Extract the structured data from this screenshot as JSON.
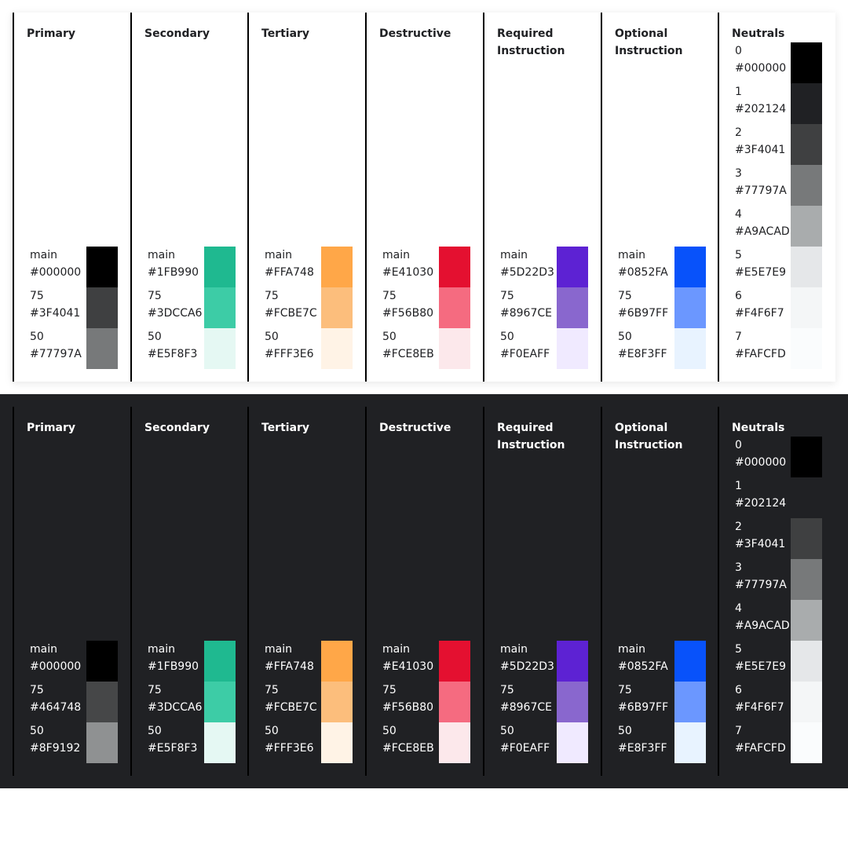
{
  "light": {
    "columns": [
      {
        "title": "Primary",
        "shades": [
          {
            "name": "main",
            "hex": "#000000",
            "color": "#000000"
          },
          {
            "name": "75",
            "hex": "#3F4041",
            "color": "#3F4041"
          },
          {
            "name": "50",
            "hex": "#77797A",
            "color": "#77797A"
          }
        ]
      },
      {
        "title": "Secondary",
        "shades": [
          {
            "name": "main",
            "hex": "#1FB990",
            "color": "#1FB990"
          },
          {
            "name": "75",
            "hex": "#3DCCA6",
            "color": "#3DCCA6"
          },
          {
            "name": "50",
            "hex": "#E5F8F3",
            "color": "#E5F8F3"
          }
        ]
      },
      {
        "title": "Tertiary",
        "shades": [
          {
            "name": "main",
            "hex": "#FFA748",
            "color": "#FFA748"
          },
          {
            "name": "75",
            "hex": "#FCBE7C",
            "color": "#FCBE7C"
          },
          {
            "name": "50",
            "hex": "#FFF3E6",
            "color": "#FFF3E6"
          }
        ]
      },
      {
        "title": "Destructive",
        "shades": [
          {
            "name": "main",
            "hex": "#E41030",
            "color": "#E41030"
          },
          {
            "name": "75",
            "hex": "#F56B80",
            "color": "#F56B80"
          },
          {
            "name": "50",
            "hex": "#FCE8EB",
            "color": "#FCE8EB"
          }
        ]
      },
      {
        "title": "Required Instruction",
        "shades": [
          {
            "name": "main",
            "hex": "#5D22D3",
            "color": "#5D22D3"
          },
          {
            "name": "75",
            "hex": "#8967CE",
            "color": "#8967CE"
          },
          {
            "name": "50",
            "hex": "#F0EAFF",
            "color": "#F0EAFF"
          }
        ]
      },
      {
        "title": "Optional Instruction",
        "shades": [
          {
            "name": "main",
            "hex": "#0852FA",
            "color": "#0852FA"
          },
          {
            "name": "75",
            "hex": "#6B97FF",
            "color": "#6B97FF"
          },
          {
            "name": "50",
            "hex": "#E8F3FF",
            "color": "#E8F3FF"
          }
        ]
      }
    ],
    "neutrals": {
      "title": "Neutrals",
      "shades": [
        {
          "name": "0",
          "hex": "#000000",
          "color": "#000000"
        },
        {
          "name": "1",
          "hex": "#202124",
          "color": "#202124"
        },
        {
          "name": "2",
          "hex": "#3F4041",
          "color": "#3F4041"
        },
        {
          "name": "3",
          "hex": "#77797A",
          "color": "#77797A"
        },
        {
          "name": "4",
          "hex": "#A9ACAD",
          "color": "#A9ACAD"
        },
        {
          "name": "5",
          "hex": "#E5E7E9",
          "color": "#E5E7E9"
        },
        {
          "name": "6",
          "hex": "#F4F6F7",
          "color": "#F4F6F7"
        },
        {
          "name": "7",
          "hex": "#FAFCFD",
          "color": "#FAFCFD"
        }
      ]
    }
  },
  "dark": {
    "columns": [
      {
        "title": "Primary",
        "shades": [
          {
            "name": "main",
            "hex": "#000000",
            "color": "#000000"
          },
          {
            "name": "75",
            "hex": "#464748",
            "color": "#464748"
          },
          {
            "name": "50",
            "hex": "#8F9192",
            "color": "#8F9192"
          }
        ]
      },
      {
        "title": "Secondary",
        "shades": [
          {
            "name": "main",
            "hex": "#1FB990",
            "color": "#1FB990"
          },
          {
            "name": "75",
            "hex": "#3DCCA6",
            "color": "#3DCCA6"
          },
          {
            "name": "50",
            "hex": "#E5F8F3",
            "color": "#E5F8F3"
          }
        ]
      },
      {
        "title": "Tertiary",
        "shades": [
          {
            "name": "main",
            "hex": "#FFA748",
            "color": "#FFA748"
          },
          {
            "name": "75",
            "hex": "#FCBE7C",
            "color": "#FCBE7C"
          },
          {
            "name": "50",
            "hex": "#FFF3E6",
            "color": "#FFF3E6"
          }
        ]
      },
      {
        "title": "Destructive",
        "shades": [
          {
            "name": "main",
            "hex": "#E41030",
            "color": "#E41030"
          },
          {
            "name": "75",
            "hex": "#F56B80",
            "color": "#F56B80"
          },
          {
            "name": "50",
            "hex": "#FCE8EB",
            "color": "#FCE8EB"
          }
        ]
      },
      {
        "title": "Required Instruction",
        "shades": [
          {
            "name": "main",
            "hex": "#5D22D3",
            "color": "#5D22D3"
          },
          {
            "name": "75",
            "hex": "#8967CE",
            "color": "#8967CE"
          },
          {
            "name": "50",
            "hex": "#F0EAFF",
            "color": "#F0EAFF"
          }
        ]
      },
      {
        "title": "Optional Instruction",
        "shades": [
          {
            "name": "main",
            "hex": "#0852FA",
            "color": "#0852FA"
          },
          {
            "name": "75",
            "hex": "#6B97FF",
            "color": "#6B97FF"
          },
          {
            "name": "50",
            "hex": "#E8F3FF",
            "color": "#E8F3FF"
          }
        ]
      }
    ],
    "neutrals": {
      "title": "Neutrals",
      "shades": [
        {
          "name": "0",
          "hex": "#000000",
          "color": "#000000"
        },
        {
          "name": "1",
          "hex": "#202124",
          "color": "#202124"
        },
        {
          "name": "2",
          "hex": "#3F4041",
          "color": "#3F4041"
        },
        {
          "name": "3",
          "hex": "#77797A",
          "color": "#77797A"
        },
        {
          "name": "4",
          "hex": "#A9ACAD",
          "color": "#A9ACAD"
        },
        {
          "name": "5",
          "hex": "#E5E7E9",
          "color": "#E5E7E9"
        },
        {
          "name": "6",
          "hex": "#F4F6F7",
          "color": "#F4F6F7"
        },
        {
          "name": "7",
          "hex": "#FAFCFD",
          "color": "#FAFCFD"
        }
      ]
    }
  }
}
